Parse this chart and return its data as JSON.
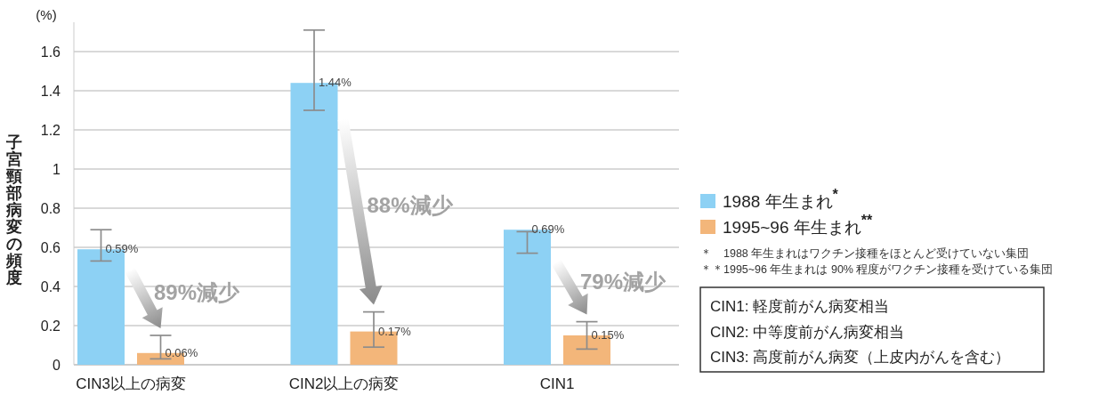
{
  "chart_data": {
    "type": "bar",
    "ylabel": "子宮頸部病変の頻度",
    "categories": [
      "CIN3以上の病変",
      "CIN2以上の病変",
      "CIN1"
    ],
    "series": [
      {
        "name": "1988 年生まれ$^{*}$",
        "color": "#8dd1f4",
        "values": [
          0.59,
          1.44,
          0.69
        ],
        "errors": [
          [
            0.53,
            0.69
          ],
          [
            1.3,
            1.71
          ],
          [
            0.57,
            0.68
          ]
        ],
        "value_labels": [
          "0.59%",
          "1.44%",
          "0.69%"
        ]
      },
      {
        "name": "1995~96 年生まれ$^{**}$",
        "color": "#f3b67a",
        "values": [
          0.06,
          0.17,
          0.15
        ],
        "errors": [
          [
            0.03,
            0.15
          ],
          [
            0.09,
            0.27
          ],
          [
            0.08,
            0.22
          ]
        ],
        "value_labels": [
          "0.06%",
          "0.17%",
          "0.15%"
        ]
      }
    ],
    "ylim": [
      0,
      1.75
    ],
    "yticks": [
      0,
      0.2,
      0.4,
      0.6,
      0.8,
      1,
      1.2,
      1.4,
      1.6
    ],
    "grid": "y",
    "legend": "right",
    "annotations": [
      "(%)",
      "89%減少",
      "88%減少",
      "79%減少",
      "＊　1988 年生まれはワクチン接種をほとんど受けていない集団",
      "＊＊1995~96 年生まれは 90% 程度がワクチン接種を受けている集団",
      "CIN1: 軽度前がん病変相当",
      "CIN2: 中等度前がん病変相当",
      "CIN3: 高度前がん病変（上皮内がんを含む）"
    ]
  }
}
